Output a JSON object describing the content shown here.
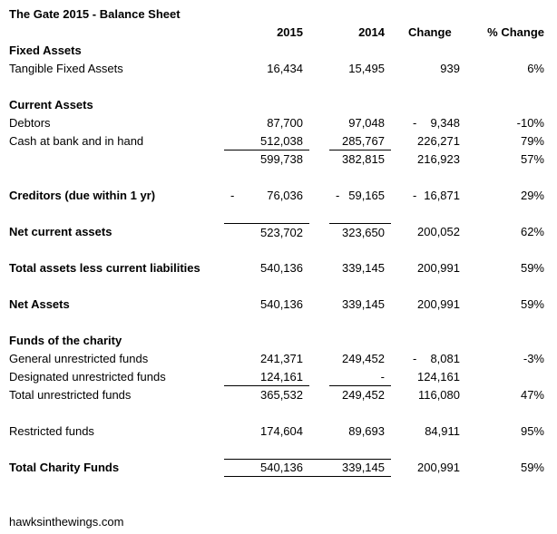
{
  "page": {
    "title": "The Gate 2015 - Balance Sheet",
    "footer": "hawksinthewings.com"
  },
  "colors": {
    "text": "#000000",
    "background": "#ffffff",
    "rule_lines": "#000000"
  },
  "table": {
    "columns": [
      "2015",
      "2014",
      "Change",
      "% Change"
    ],
    "rows": [
      {
        "type": "section",
        "label": "Fixed Assets"
      },
      {
        "type": "data",
        "label": "Tangible Fixed Assets",
        "cells": [
          {
            "v": "16,434"
          },
          {
            "v": "15,495"
          },
          {
            "v": "939"
          },
          {
            "v": "6%"
          }
        ]
      },
      {
        "type": "spacer"
      },
      {
        "type": "section",
        "label": "Current Assets"
      },
      {
        "type": "data",
        "label": "Debtors",
        "cells": [
          {
            "v": "87,700"
          },
          {
            "v": "97,048"
          },
          {
            "sign": "-",
            "v": "9,348"
          },
          {
            "v": "-10%"
          }
        ]
      },
      {
        "type": "data",
        "label": "Cash at bank and in hand",
        "line": "bottom",
        "cells": [
          {
            "v": "512,038"
          },
          {
            "v": "285,767"
          },
          {
            "v": "226,271"
          },
          {
            "v": "79%"
          }
        ]
      },
      {
        "type": "data",
        "label": "",
        "cells": [
          {
            "v": "599,738"
          },
          {
            "v": "382,815"
          },
          {
            "v": "216,923"
          },
          {
            "v": "57%"
          }
        ]
      },
      {
        "type": "spacer"
      },
      {
        "type": "data",
        "bold": true,
        "label": "Creditors (due within 1 yr)",
        "cells": [
          {
            "sign": "-",
            "v": "76,036"
          },
          {
            "sign": "-",
            "v": "59,165"
          },
          {
            "sign": "-",
            "v": "16,871"
          },
          {
            "v": "29%"
          }
        ]
      },
      {
        "type": "spacer"
      },
      {
        "type": "data",
        "bold": true,
        "label": "Net current assets",
        "line": "top",
        "cells": [
          {
            "v": "523,702"
          },
          {
            "v": "323,650"
          },
          {
            "v": "200,052"
          },
          {
            "v": "62%"
          }
        ]
      },
      {
        "type": "spacer"
      },
      {
        "type": "data",
        "bold": true,
        "label": "Total assets less current liabilities",
        "cells": [
          {
            "v": "540,136"
          },
          {
            "v": "339,145"
          },
          {
            "v": "200,991"
          },
          {
            "v": "59%"
          }
        ]
      },
      {
        "type": "spacer"
      },
      {
        "type": "data",
        "bold": true,
        "label": "Net Assets",
        "cells": [
          {
            "v": "540,136"
          },
          {
            "v": "339,145"
          },
          {
            "v": "200,991"
          },
          {
            "v": "59%"
          }
        ]
      },
      {
        "type": "spacer"
      },
      {
        "type": "section",
        "label": "Funds of the charity"
      },
      {
        "type": "data",
        "label": "General unrestricted funds",
        "cells": [
          {
            "v": "241,371"
          },
          {
            "v": "249,452"
          },
          {
            "sign": "-",
            "v": "8,081"
          },
          {
            "v": "-3%"
          }
        ]
      },
      {
        "type": "data",
        "label": "Designated unrestricted funds",
        "line": "bottom",
        "cells": [
          {
            "v": "124,161"
          },
          {
            "v": "-"
          },
          {
            "v": "124,161"
          },
          {
            "v": ""
          }
        ]
      },
      {
        "type": "data",
        "label": "Total unrestricted funds",
        "cells": [
          {
            "v": "365,532"
          },
          {
            "v": "249,452"
          },
          {
            "v": "116,080"
          },
          {
            "v": "47%"
          }
        ]
      },
      {
        "type": "spacer"
      },
      {
        "type": "data",
        "label": "Restricted funds",
        "cells": [
          {
            "v": "174,604"
          },
          {
            "v": "89,693"
          },
          {
            "v": "84,911"
          },
          {
            "v": "95%"
          }
        ]
      },
      {
        "type": "spacer"
      },
      {
        "type": "data",
        "bold": true,
        "label": "Total Charity Funds",
        "line": "box",
        "cells": [
          {
            "v": "540,136"
          },
          {
            "v": "339,145"
          },
          {
            "v": "200,991"
          },
          {
            "v": "59%"
          }
        ]
      }
    ]
  }
}
